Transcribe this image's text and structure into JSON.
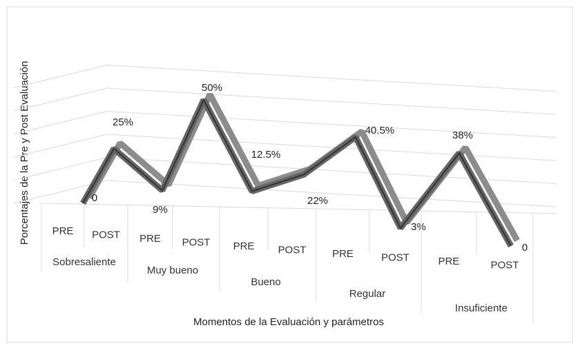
{
  "chart_data": {
    "type": "line",
    "y_label": "Porcentajes de la Pre y Post Evaluación",
    "x_label": "Momentos de la Evaluación y parámetros",
    "groups": [
      "Sobresaliente",
      "Muy bueno",
      "Bueno",
      "Regular",
      "Insuficiente"
    ],
    "categories": [
      "PRE",
      "POST",
      "PRE",
      "POST",
      "PRE",
      "POST",
      "PRE",
      "POST",
      "PRE",
      "POST"
    ],
    "series": [
      {
        "color": "#666666",
        "values": [
          0,
          25,
          9,
          50,
          12.5,
          22,
          40.5,
          3,
          38,
          0
        ],
        "value_labels": [
          "0",
          "25%",
          "9%",
          "50%",
          "12.5%",
          "22%",
          "40.5%",
          "3%",
          "38%",
          "0"
        ]
      }
    ],
    "ylim": [
      0,
      50
    ],
    "yticks": [
      0,
      10,
      20,
      30,
      40,
      50
    ],
    "grid": true
  }
}
